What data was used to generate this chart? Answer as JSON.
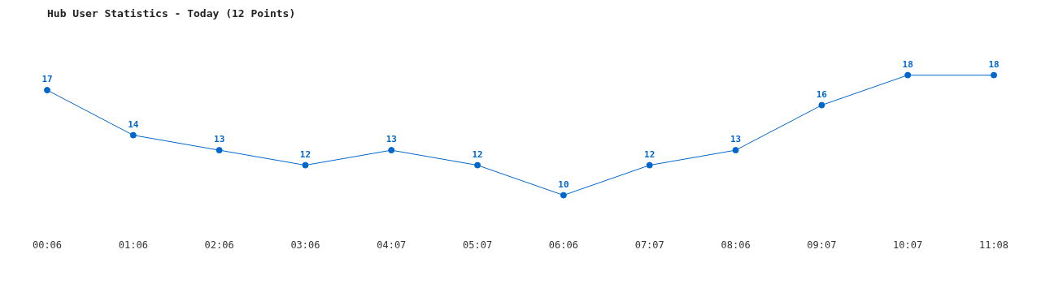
{
  "chart_data": {
    "type": "line",
    "title": "Hub User Statistics - Today (12 Points)",
    "categories": [
      "00:06",
      "01:06",
      "02:06",
      "03:06",
      "04:07",
      "05:07",
      "06:06",
      "07:07",
      "08:06",
      "09:07",
      "10:07",
      "11:08"
    ],
    "series": [
      {
        "color": "#0066cc",
        "values": [
          17,
          14,
          13,
          12,
          13,
          12,
          10,
          12,
          13,
          16,
          18,
          18
        ]
      }
    ],
    "data_labels": true,
    "grid": false,
    "legend": false,
    "marker": "circle",
    "line_style": "solid"
  }
}
